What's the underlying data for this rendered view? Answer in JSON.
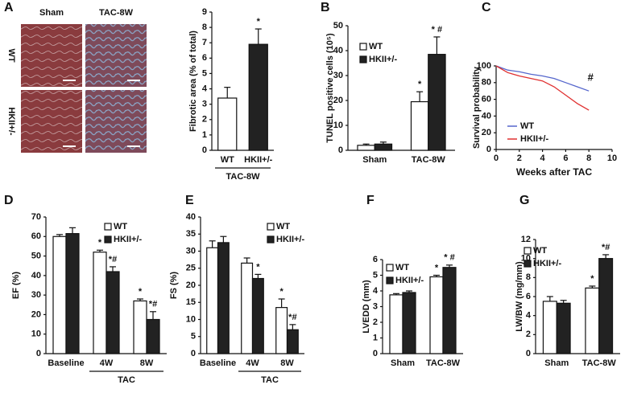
{
  "chart_data": [
    {
      "type": "bar",
      "panel": "A",
      "image_columns": [
        "Sham",
        "TAC-8W"
      ],
      "image_rows": [
        "WT",
        "HKII+/-"
      ],
      "ylabel": "Fibrotic area (% of total)",
      "categories": [
        "WT",
        "HKII+/-"
      ],
      "group_label": "TAC-8W",
      "values": [
        3.4,
        6.9
      ],
      "errors": [
        0.7,
        1.0
      ],
      "colors": [
        "#ffffff",
        "#222222"
      ],
      "significance": [
        null,
        "*"
      ],
      "ylim": [
        0,
        9
      ],
      "yticks": [
        0,
        1,
        2,
        3,
        4,
        5,
        6,
        7,
        8,
        9
      ]
    },
    {
      "type": "grouped_bar",
      "panel": "B",
      "ylabel": "TUNEL positive cells (10⁵)",
      "categories": [
        "Sham",
        "TAC-8W"
      ],
      "series": [
        {
          "name": "WT",
          "color": "#ffffff",
          "values": [
            2,
            19.5
          ],
          "errors": [
            0.5,
            4
          ],
          "significance": [
            null,
            "*"
          ]
        },
        {
          "name": "HKII+/-",
          "color": "#222222",
          "values": [
            2.5,
            38.5
          ],
          "errors": [
            0.8,
            7
          ],
          "significance": [
            null,
            "* #"
          ]
        }
      ],
      "ylim": [
        0,
        50
      ],
      "yticks": [
        0,
        10,
        20,
        30,
        40,
        50
      ],
      "legend": true
    },
    {
      "type": "line",
      "panel": "C",
      "ylabel": "Survival probability",
      "xlabel": "Weeks after TAC",
      "x": [
        0,
        1,
        2,
        3,
        4,
        5,
        6,
        7,
        8
      ],
      "series": [
        {
          "name": "WT",
          "color": "#5566cc",
          "values": [
            100,
            95,
            93,
            90,
            88,
            85,
            80,
            75,
            70
          ]
        },
        {
          "name": "HKII+/-",
          "color": "#e03030",
          "values": [
            100,
            92,
            88,
            85,
            82,
            75,
            65,
            55,
            47
          ]
        }
      ],
      "annotation": "#",
      "xlim": [
        0,
        10
      ],
      "xticks": [
        0,
        2,
        4,
        6,
        8,
        10
      ],
      "ylim": [
        0,
        100
      ],
      "yticks": [
        0,
        20,
        40,
        60,
        80,
        100
      ],
      "legend": true
    },
    {
      "type": "grouped_bar",
      "panel": "D",
      "ylabel": "EF (%)",
      "categories": [
        "Baseline",
        "4W",
        "8W"
      ],
      "group_label": "TAC",
      "series": [
        {
          "name": "WT",
          "color": "#ffffff",
          "values": [
            60,
            52,
            27
          ],
          "errors": [
            1,
            1,
            1
          ],
          "significance": [
            null,
            "*",
            "*"
          ]
        },
        {
          "name": "HKII+/-",
          "color": "#222222",
          "values": [
            61.5,
            42,
            17.5
          ],
          "errors": [
            3,
            2.5,
            4
          ],
          "significance": [
            null,
            "*#",
            "*#"
          ]
        }
      ],
      "ylim": [
        0,
        70
      ],
      "yticks": [
        0,
        10,
        20,
        30,
        40,
        50,
        60,
        70
      ],
      "legend": true
    },
    {
      "type": "grouped_bar",
      "panel": "E",
      "ylabel": "FS (%)",
      "categories": [
        "Baseline",
        "4W",
        "8W"
      ],
      "group_label": "TAC",
      "series": [
        {
          "name": "WT",
          "color": "#ffffff",
          "values": [
            31,
            26.5,
            13.5
          ],
          "errors": [
            2,
            1.5,
            2.5
          ],
          "significance": [
            null,
            null,
            "*"
          ]
        },
        {
          "name": "HKII+/-",
          "color": "#222222",
          "values": [
            32.5,
            22,
            7
          ],
          "errors": [
            1.8,
            1.2,
            1.5
          ],
          "significance": [
            null,
            "*",
            "*#"
          ]
        }
      ],
      "ylim": [
        0,
        40
      ],
      "yticks": [
        0,
        5,
        10,
        15,
        20,
        25,
        30,
        35,
        40
      ],
      "legend": true
    },
    {
      "type": "grouped_bar",
      "panel": "F",
      "ylabel": "LVEDD (mm)",
      "categories": [
        "Sham",
        "TAC-8W"
      ],
      "series": [
        {
          "name": "WT",
          "color": "#ffffff",
          "values": [
            3.75,
            4.9
          ],
          "errors": [
            0.08,
            0.1
          ],
          "significance": [
            null,
            "*"
          ]
        },
        {
          "name": "HKII+/-",
          "color": "#222222",
          "values": [
            3.9,
            5.5
          ],
          "errors": [
            0.1,
            0.15
          ],
          "significance": [
            null,
            "* #"
          ]
        }
      ],
      "ylim": [
        0,
        6
      ],
      "yticks": [
        0,
        1,
        2,
        3,
        4,
        5,
        6
      ],
      "legend": true
    },
    {
      "type": "grouped_bar",
      "panel": "G",
      "ylabel": "LW/BW (mg/mm)",
      "categories": [
        "Sham",
        "TAC-8W"
      ],
      "series": [
        {
          "name": "WT",
          "color": "#ffffff",
          "values": [
            5.5,
            6.9
          ],
          "errors": [
            0.5,
            0.2
          ],
          "significance": [
            null,
            "*"
          ]
        },
        {
          "name": "HKII+/-",
          "color": "#222222",
          "values": [
            5.3,
            10
          ],
          "errors": [
            0.3,
            0.4
          ],
          "significance": [
            null,
            "*#"
          ]
        }
      ],
      "ylim": [
        0,
        12
      ],
      "yticks": [
        0,
        2,
        4,
        6,
        8,
        10,
        12
      ],
      "legend": true
    }
  ]
}
